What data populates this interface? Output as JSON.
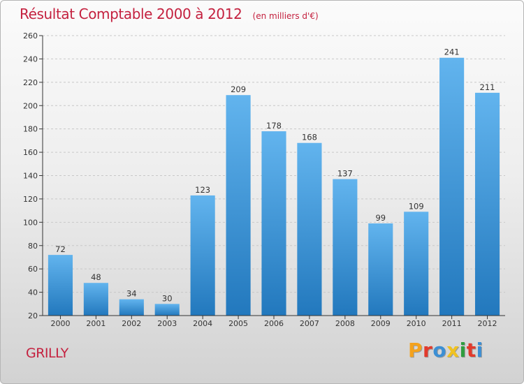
{
  "chart_data": {
    "type": "bar",
    "title": "Résultat Comptable 2000 à 2012",
    "subtitle": "(en milliers d'€)",
    "categories": [
      "2000",
      "2001",
      "2002",
      "2003",
      "2004",
      "2005",
      "2006",
      "2007",
      "2008",
      "2009",
      "2010",
      "2011",
      "2012"
    ],
    "values": [
      72,
      48,
      34,
      30,
      123,
      209,
      178,
      168,
      137,
      99,
      109,
      241,
      211
    ],
    "ylim": [
      20,
      260
    ],
    "yticks": [
      20,
      40,
      60,
      80,
      100,
      120,
      140,
      160,
      180,
      200,
      220,
      240,
      260
    ],
    "xlabel": "",
    "ylabel": "",
    "grid": true,
    "bar_color_top": "#62b4ee",
    "bar_color_bottom": "#2278bd"
  },
  "footer": {
    "town": "GRILLY",
    "logo_letters": [
      "P",
      "r",
      "o",
      "x",
      "i",
      "t",
      "i"
    ],
    "logo_colors": [
      "#f4a21d",
      "#e23a2c",
      "#3c8fd4",
      "#f0c221",
      "#2e9d3e",
      "#e23a2c",
      "#3c8fd4"
    ]
  },
  "colors": {
    "title": "#c4213f",
    "axis": "#333333",
    "grid": "#c8c8c8"
  }
}
